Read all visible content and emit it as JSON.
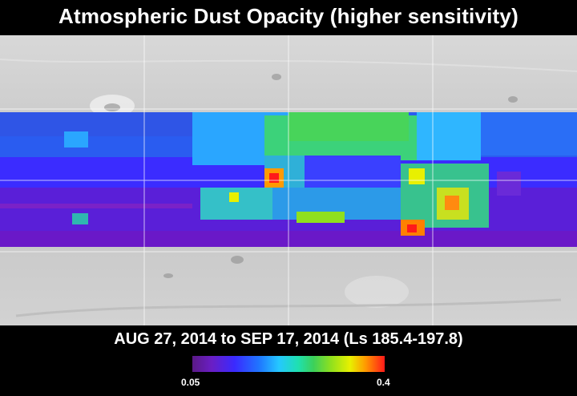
{
  "title": "Atmospheric Dust Opacity (higher sensitivity)",
  "subtitle": "AUG 27, 2014 to SEP 17, 2014 (Ls 185.4-197.8)",
  "colorbar": {
    "min_label": "0.05",
    "max_label": "0.4",
    "colors": [
      "#5a1a86",
      "#3a2aff",
      "#25c8ff",
      "#3cd05a",
      "#e8f000",
      "#ff1a1a"
    ]
  },
  "colors": {
    "background": "#000000",
    "relief": "#cfcfcf",
    "grid": "#ffffff"
  }
}
